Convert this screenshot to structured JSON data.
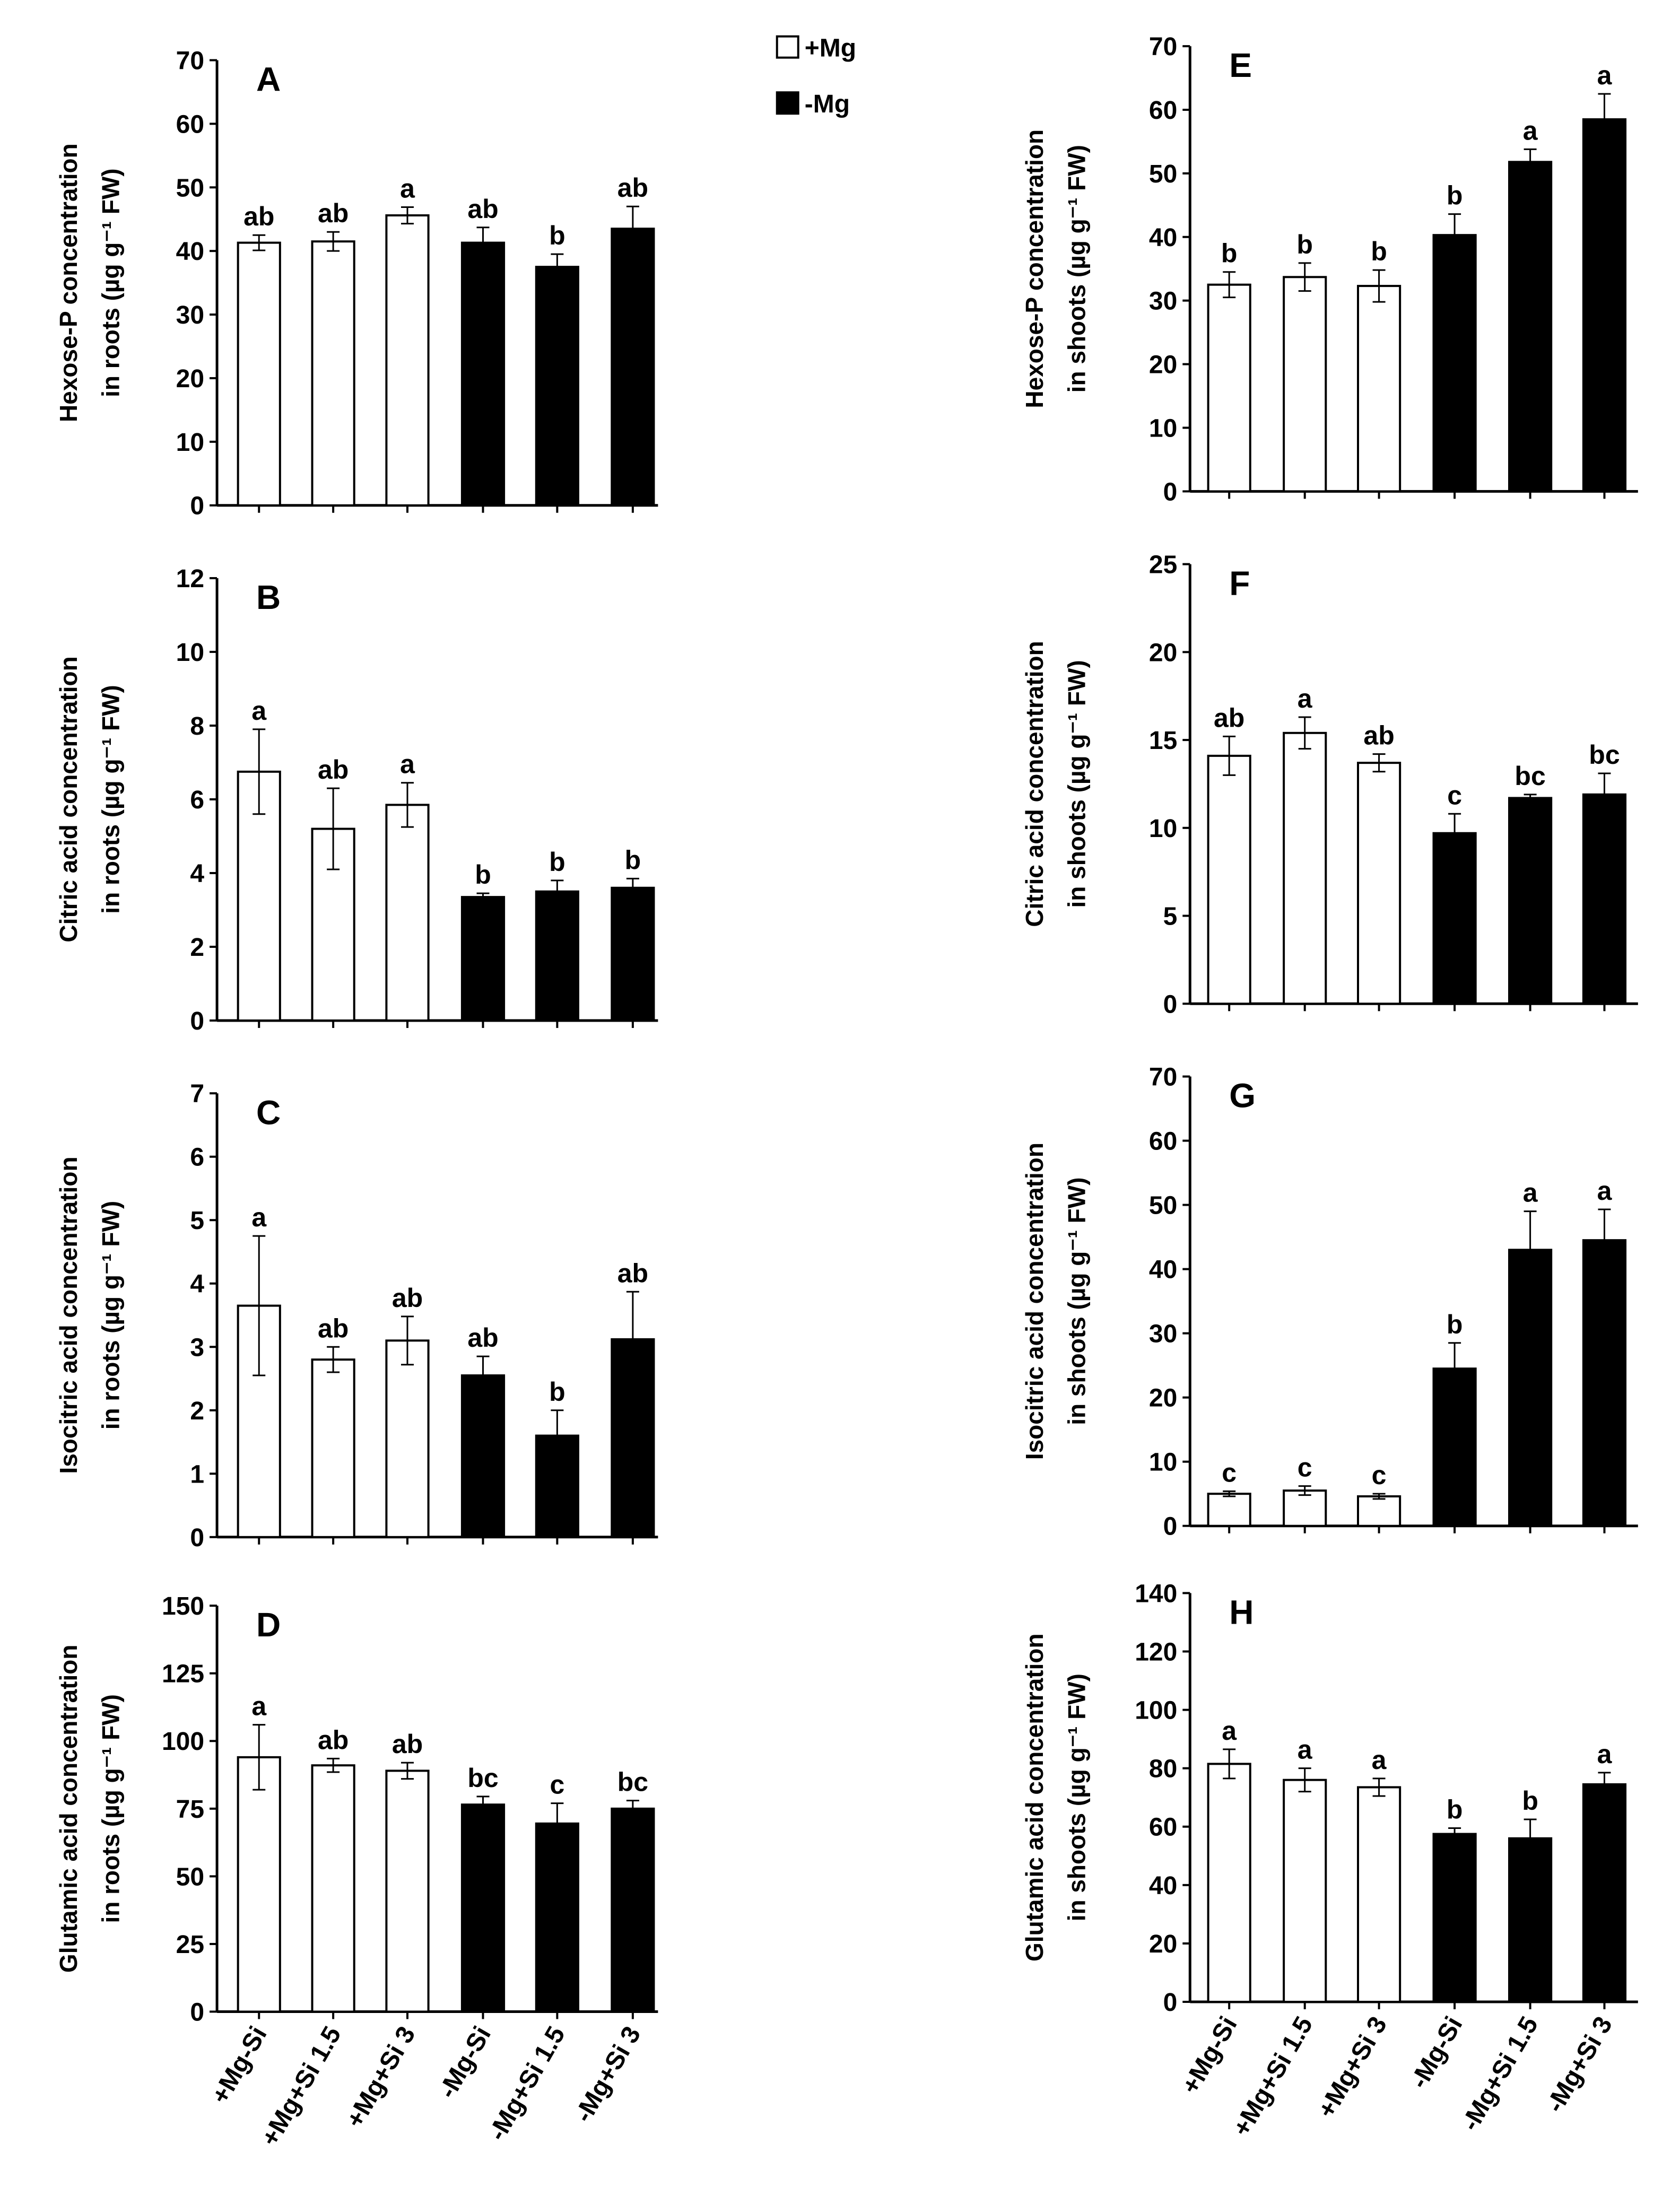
{
  "chart_data": {
    "type": "bar",
    "categories": [
      "+Mg-Si",
      "+Mg+Si 1.5",
      "+Mg+Si 3",
      "-Mg-Si",
      "-Mg+Si 1.5",
      "-Mg+Si 3"
    ],
    "legend": [
      {
        "name": "+Mg",
        "color": "#ffffff"
      },
      {
        "name": "-Mg",
        "color": "#000000"
      }
    ],
    "legend_placement": "top-center",
    "bar_colors": [
      "#ffffff",
      "#ffffff",
      "#ffffff",
      "#000000",
      "#000000",
      "#000000"
    ],
    "panels": [
      {
        "id": "A",
        "ylabel": [
          "Hexose-P concentration",
          "in roots (µg g⁻¹ FW)"
        ],
        "ylim": [
          0,
          70
        ],
        "yticks": [
          0,
          10,
          20,
          30,
          40,
          50,
          60,
          70
        ],
        "values": [
          41.3,
          41.5,
          45.6,
          41.3,
          37.5,
          43.5
        ],
        "errors": [
          1.2,
          1.5,
          1.3,
          2.4,
          2.0,
          3.5
        ],
        "letters": [
          "ab",
          "ab",
          "a",
          "ab",
          "b",
          "ab"
        ]
      },
      {
        "id": "B",
        "ylabel": [
          "Citric acid concentration",
          "in roots (µg g⁻¹ FW)"
        ],
        "ylim": [
          0,
          12
        ],
        "yticks": [
          0,
          2,
          4,
          6,
          8,
          10,
          12
        ],
        "values": [
          6.75,
          5.2,
          5.85,
          3.35,
          3.5,
          3.6
        ],
        "errors": [
          1.15,
          1.1,
          0.6,
          0.1,
          0.3,
          0.25
        ],
        "letters": [
          "a",
          "ab",
          "a",
          "b",
          "b",
          "b"
        ]
      },
      {
        "id": "C",
        "ylabel": [
          "Isocitric acid concentration",
          "in roots (µg g⁻¹ FW)"
        ],
        "ylim": [
          0,
          7
        ],
        "yticks": [
          0,
          1,
          2,
          3,
          4,
          5,
          6,
          7
        ],
        "values": [
          3.65,
          2.8,
          3.1,
          2.55,
          1.6,
          3.12
        ],
        "errors": [
          1.1,
          0.2,
          0.38,
          0.3,
          0.4,
          0.75
        ],
        "letters": [
          "a",
          "ab",
          "ab",
          "ab",
          "b",
          "ab"
        ]
      },
      {
        "id": "D",
        "ylabel": [
          "Glutamic acid concentration",
          "in roots (µg g⁻¹ FW)"
        ],
        "ylim": [
          0,
          150
        ],
        "yticks": [
          0,
          25,
          50,
          75,
          100,
          125,
          150
        ],
        "values": [
          94,
          91,
          89,
          76.5,
          69.5,
          75
        ],
        "errors": [
          12,
          2.5,
          3,
          3,
          7.5,
          3
        ],
        "letters": [
          "a",
          "ab",
          "ab",
          "bc",
          "c",
          "bc"
        ]
      },
      {
        "id": "E",
        "ylabel": [
          "Hexose-P concentration",
          "in shoots (µg g⁻¹ FW)"
        ],
        "ylim": [
          0,
          70
        ],
        "yticks": [
          0,
          10,
          20,
          30,
          40,
          50,
          60,
          70
        ],
        "values": [
          32.5,
          33.7,
          32.3,
          40.3,
          51.8,
          58.5
        ],
        "errors": [
          2.0,
          2.2,
          2.5,
          3.3,
          2.0,
          4.0
        ],
        "letters": [
          "b",
          "b",
          "b",
          "b",
          "a",
          "a"
        ]
      },
      {
        "id": "F",
        "ylabel": [
          "Citric acid concentration",
          "in shoots (µg g⁻¹ FW)"
        ],
        "ylim": [
          0,
          25
        ],
        "yticks": [
          0,
          5,
          10,
          15,
          20,
          25
        ],
        "values": [
          14.1,
          15.4,
          13.7,
          9.7,
          11.7,
          11.9
        ],
        "errors": [
          1.1,
          0.9,
          0.5,
          1.1,
          0.2,
          1.2
        ],
        "letters": [
          "ab",
          "a",
          "ab",
          "c",
          "bc",
          "bc"
        ]
      },
      {
        "id": "G",
        "ylabel": [
          "Isocitric acid concentration",
          "in shoots (µg g⁻¹ FW)"
        ],
        "ylim": [
          0,
          70
        ],
        "yticks": [
          0,
          10,
          20,
          30,
          40,
          50,
          60,
          70
        ],
        "values": [
          5.0,
          5.5,
          4.6,
          24.5,
          43.0,
          44.5
        ],
        "errors": [
          0.4,
          0.7,
          0.4,
          4.0,
          6.0,
          4.8
        ],
        "letters": [
          "c",
          "c",
          "c",
          "b",
          "a",
          "a"
        ]
      },
      {
        "id": "H",
        "ylabel": [
          "Glutamic acid concentration",
          "in shoots (µg g⁻¹ FW)"
        ],
        "ylim": [
          0,
          140
        ],
        "yticks": [
          0,
          20,
          40,
          60,
          80,
          100,
          120,
          140
        ],
        "values": [
          81.5,
          76,
          73.5,
          57.5,
          56,
          74.5
        ],
        "errors": [
          5,
          4,
          3,
          2,
          6.5,
          4
        ],
        "letters": [
          "a",
          "a",
          "a",
          "b",
          "b",
          "a"
        ]
      }
    ]
  }
}
